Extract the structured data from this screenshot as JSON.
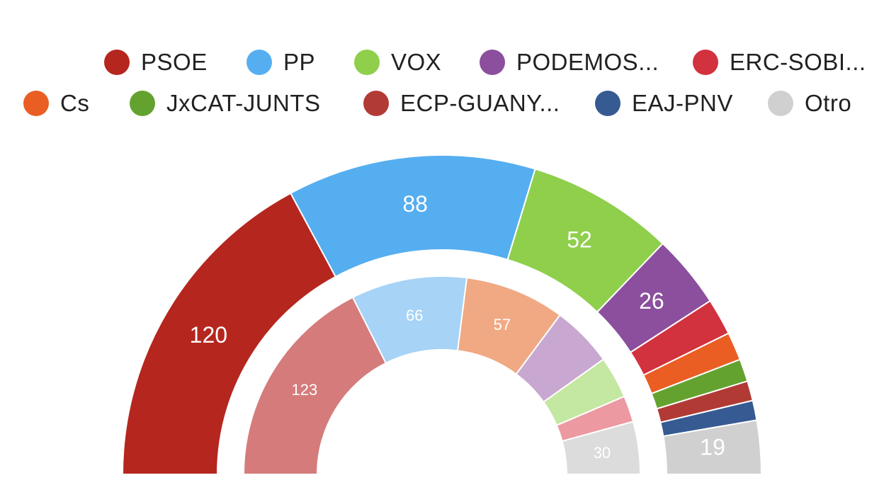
{
  "chart_data": [
    {
      "type": "semicircle-donut",
      "ring": "outer",
      "series": [
        {
          "name": "PSOE",
          "value": 120,
          "color": "#b5261e",
          "label": "120"
        },
        {
          "name": "PP",
          "value": 88,
          "color": "#55aef0",
          "label": "88"
        },
        {
          "name": "VOX",
          "value": 52,
          "color": "#8fcf4c",
          "label": "52"
        },
        {
          "name": "PODEMOS...",
          "value": 26,
          "color": "#8b4f9e",
          "label": "26"
        },
        {
          "name": "ERC-SOBI...",
          "value": 13,
          "color": "#d2313e",
          "label": ""
        },
        {
          "name": "Cs",
          "value": 10,
          "color": "#ea5e23",
          "label": ""
        },
        {
          "name": "JxCAT-JUNTS",
          "value": 8,
          "color": "#64a22f",
          "label": ""
        },
        {
          "name": "ECP-GUANY...",
          "value": 7,
          "color": "#b23a35",
          "label": ""
        },
        {
          "name": "EAJ-PNV",
          "value": 7,
          "color": "#365a92",
          "label": ""
        },
        {
          "name": "Otro",
          "value": 19,
          "color": "#d0d0d0",
          "label": "19"
        }
      ]
    },
    {
      "type": "semicircle-donut",
      "ring": "inner",
      "series": [
        {
          "name": "PSOE",
          "value": 123,
          "color": "#d57b7b",
          "label": "123"
        },
        {
          "name": "PP",
          "value": 66,
          "color": "#a6d3f6",
          "label": "66"
        },
        {
          "name": "Cs",
          "value": 57,
          "color": "#f0a983",
          "label": "57"
        },
        {
          "name": "PODEMOS...",
          "value": 35,
          "color": "#c8a8d0",
          "label": ""
        },
        {
          "name": "VOX",
          "value": 24,
          "color": "#c4e7a2",
          "label": ""
        },
        {
          "name": "ERC-SOBI...",
          "value": 15,
          "color": "#ec99a1",
          "label": ""
        },
        {
          "name": "Otro",
          "value": 30,
          "color": "#dcdcdc",
          "label": "30"
        }
      ]
    }
  ],
  "legend": [
    {
      "label": "PSOE",
      "color": "#b5261e"
    },
    {
      "label": "PP",
      "color": "#55aef0"
    },
    {
      "label": "VOX",
      "color": "#8fcf4c"
    },
    {
      "label": "PODEMOS...",
      "color": "#8b4f9e"
    },
    {
      "label": "ERC-SOBI...",
      "color": "#d2313e"
    },
    {
      "label": "Cs",
      "color": "#ea5e23"
    },
    {
      "label": "JxCAT-JUNTS",
      "color": "#64a22f"
    },
    {
      "label": "ECP-GUANY...",
      "color": "#b23a35"
    },
    {
      "label": "EAJ-PNV",
      "color": "#365a92"
    },
    {
      "label": "Otro",
      "color": "#d0d0d0"
    }
  ]
}
